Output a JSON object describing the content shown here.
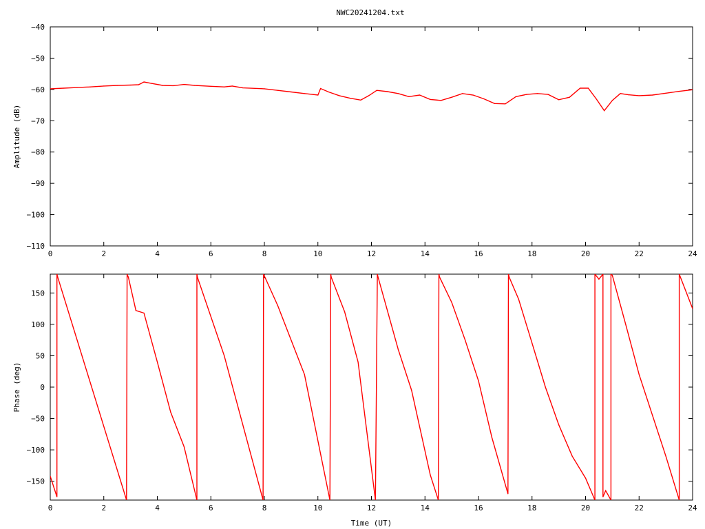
{
  "title": "NWC20241204.txt",
  "chart_data": [
    {
      "type": "line",
      "title": "NWC20241204.txt",
      "xlabel": "",
      "ylabel": "Amplitude (dB)",
      "xlim": [
        0,
        24
      ],
      "ylim": [
        -110,
        -40
      ],
      "xticks": [
        0,
        2,
        4,
        6,
        8,
        10,
        12,
        14,
        16,
        18,
        20,
        22,
        24
      ],
      "yticks": [
        -40,
        -50,
        -60,
        -70,
        -80,
        -90,
        -100,
        -110
      ],
      "grid": false,
      "color": "#ff0000",
      "series": [
        {
          "x": [
            0,
            0.5,
            1,
            1.5,
            2,
            2.5,
            3,
            3.3,
            3.5,
            3.8,
            4.2,
            4.6,
            5.0,
            5.4,
            6.0,
            6.5,
            6.8,
            7.2,
            8,
            8.5,
            9,
            9.5,
            10.0,
            10.1,
            10.4,
            10.8,
            11.2,
            11.6,
            11.9,
            12.2,
            12.6,
            13.0,
            13.4,
            13.8,
            14.2,
            14.6,
            15.0,
            15.4,
            15.8,
            16.2,
            16.6,
            17.0,
            17.4,
            17.8,
            18.2,
            18.6,
            19.0,
            19.4,
            19.8,
            20.1,
            20.4,
            20.7,
            21.0,
            21.3,
            21.6,
            22.0,
            22.5,
            23.0,
            23.5,
            24
          ],
          "y": [
            -59.8,
            -59.6,
            -59.4,
            -59.2,
            -58.9,
            -58.7,
            -58.6,
            -58.5,
            -57.6,
            -58.1,
            -58.7,
            -58.8,
            -58.4,
            -58.7,
            -59.0,
            -59.2,
            -58.9,
            -59.5,
            -59.8,
            -60.3,
            -60.8,
            -61.3,
            -61.8,
            -59.7,
            -60.8,
            -62.0,
            -62.8,
            -63.4,
            -62.0,
            -60.3,
            -60.7,
            -61.3,
            -62.3,
            -61.8,
            -63.2,
            -63.5,
            -62.5,
            -61.3,
            -61.8,
            -63.0,
            -64.5,
            -64.6,
            -62.3,
            -61.6,
            -61.3,
            -61.6,
            -63.3,
            -62.5,
            -59.6,
            -59.6,
            -63.0,
            -66.8,
            -63.5,
            -61.3,
            -61.7,
            -62.0,
            -61.8,
            -61.2,
            -60.6,
            -60.1
          ]
        }
      ]
    },
    {
      "type": "line",
      "title": "",
      "xlabel": "Time (UT)",
      "ylabel": "Phase (deg)",
      "xlim": [
        0,
        24
      ],
      "ylim": [
        -180,
        180
      ],
      "xticks": [
        0,
        2,
        4,
        6,
        8,
        10,
        12,
        14,
        16,
        18,
        20,
        22,
        24
      ],
      "yticks": [
        150,
        100,
        50,
        0,
        -50,
        -100,
        -150
      ],
      "grid": false,
      "color": "#ff0000",
      "series": [
        {
          "x": [
            0,
            0.25,
            0.25,
            0.28,
            2.85,
            2.87,
            2.92,
            3.2,
            3.5,
            4.0,
            4.5,
            5.0,
            5.48,
            5.48,
            5.5,
            6.5,
            7.95,
            7.97,
            8.5,
            9.5,
            10.45,
            10.48,
            10.5,
            11.0,
            11.5,
            12.15,
            12.22,
            12.25,
            13.0,
            13.5,
            14.2,
            14.5,
            14.52,
            14.55,
            15.0,
            15.5,
            16.0,
            16.5,
            17.1,
            17.12,
            17.15,
            17.5,
            18.0,
            18.5,
            19.0,
            19.5,
            20.0,
            20.35,
            20.35,
            20.5,
            20.65,
            20.65,
            20.75,
            20.95,
            20.95,
            21.0,
            21.5,
            22.0,
            23.0,
            23.5,
            23.5,
            24.0
          ],
          "y": [
            -142,
            -175,
            180,
            175,
            -180,
            180,
            175,
            122,
            118,
            40,
            -40,
            -95,
            -180,
            180,
            175,
            50,
            -180,
            180,
            130,
            20,
            -180,
            180,
            175,
            120,
            40,
            -180,
            180,
            175,
            60,
            -5,
            -140,
            -180,
            180,
            175,
            135,
            75,
            10,
            -80,
            -170,
            180,
            175,
            140,
            70,
            0,
            -60,
            -110,
            -145,
            -180,
            180,
            172,
            180,
            -175,
            -165,
            -180,
            180,
            178,
            100,
            20,
            -110,
            -180,
            180,
            125
          ]
        }
      ]
    }
  ]
}
